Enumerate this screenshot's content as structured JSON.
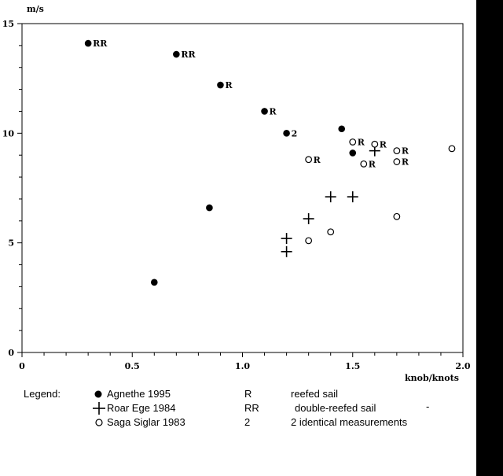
{
  "chart_data": {
    "type": "scatter",
    "xlabel": "knob/knots",
    "ylabel": "m/s",
    "xlim": [
      0,
      2.0
    ],
    "ylim": [
      0,
      15
    ],
    "x_ticks": [
      "0",
      "0.5",
      "1.0",
      "1.5",
      "2.0"
    ],
    "y_ticks": [
      "0",
      "5",
      "10",
      "15"
    ],
    "x_tick_values": [
      0,
      0.5,
      1.0,
      1.5,
      2.0
    ],
    "y_tick_values": [
      0,
      5,
      10,
      15
    ],
    "x_minor_step": 0.1,
    "y_minor_step": 1,
    "grid": false,
    "legend_position": "bottom",
    "series": [
      {
        "name": "Agnethe 1995",
        "marker": "filled-circle",
        "points": [
          {
            "x": 0.3,
            "y": 14.1,
            "label": "RR"
          },
          {
            "x": 0.7,
            "y": 13.6,
            "label": "RR"
          },
          {
            "x": 0.9,
            "y": 12.2,
            "label": "R"
          },
          {
            "x": 1.1,
            "y": 11.0,
            "label": "R"
          },
          {
            "x": 1.2,
            "y": 10.0,
            "label": "2"
          },
          {
            "x": 1.45,
            "y": 10.2,
            "label": ""
          },
          {
            "x": 1.5,
            "y": 9.1,
            "label": ""
          },
          {
            "x": 0.85,
            "y": 6.6,
            "label": ""
          },
          {
            "x": 0.6,
            "y": 3.2,
            "label": ""
          }
        ]
      },
      {
        "name": "Roar Ege 1984",
        "marker": "plus",
        "points": [
          {
            "x": 1.2,
            "y": 5.2,
            "label": ""
          },
          {
            "x": 1.2,
            "y": 4.6,
            "label": ""
          },
          {
            "x": 1.3,
            "y": 6.1,
            "label": ""
          },
          {
            "x": 1.4,
            "y": 7.1,
            "label": ""
          },
          {
            "x": 1.5,
            "y": 7.1,
            "label": ""
          },
          {
            "x": 1.6,
            "y": 9.2,
            "label": ""
          }
        ]
      },
      {
        "name": "Saga Siglar 1983",
        "marker": "open-circle",
        "points": [
          {
            "x": 1.3,
            "y": 8.8,
            "label": "R"
          },
          {
            "x": 1.5,
            "y": 9.6,
            "label": "R"
          },
          {
            "x": 1.6,
            "y": 9.5,
            "label": "R"
          },
          {
            "x": 1.55,
            "y": 8.6,
            "label": "R"
          },
          {
            "x": 1.7,
            "y": 9.2,
            "label": "R"
          },
          {
            "x": 1.7,
            "y": 8.7,
            "label": "R"
          },
          {
            "x": 1.95,
            "y": 9.3,
            "label": ""
          },
          {
            "x": 1.7,
            "y": 6.2,
            "label": ""
          },
          {
            "x": 1.4,
            "y": 5.5,
            "label": ""
          },
          {
            "x": 1.3,
            "y": 5.1,
            "label": ""
          }
        ]
      }
    ]
  },
  "legend": {
    "title": "Legend:",
    "entries": [
      {
        "symbol": "filled-circle",
        "label": "Agnethe 1995",
        "code": "R",
        "meaning": "reefed sail"
      },
      {
        "symbol": "plus",
        "label": "Roar Ege 1984",
        "code": "RR",
        "meaning": "double-reefed sail"
      },
      {
        "symbol": "open-circle",
        "label": "Saga Siglar 1983",
        "code": "2",
        "meaning": "2 identical measurements"
      }
    ],
    "stray_mark": "-"
  }
}
